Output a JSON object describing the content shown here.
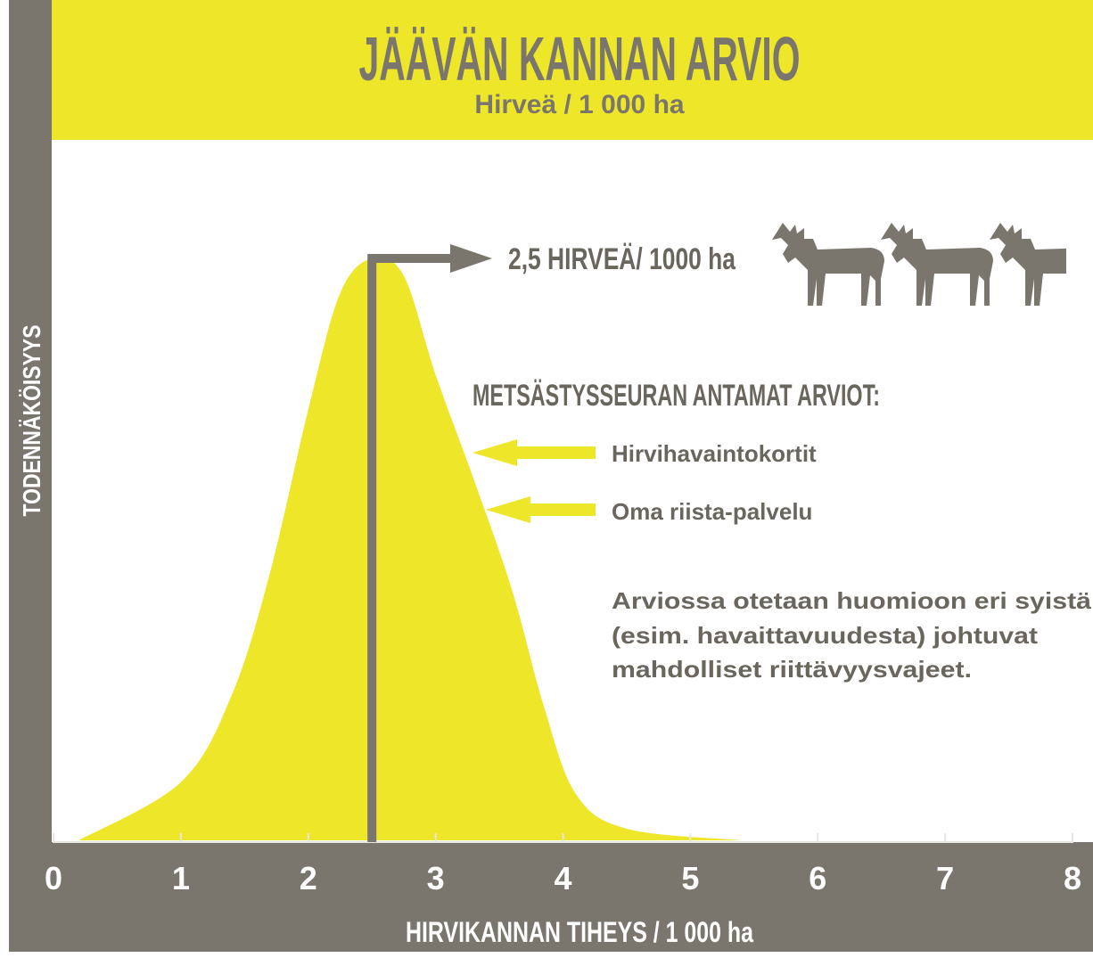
{
  "chart_data": {
    "type": "area",
    "title": "JÄÄVÄN KANNAN ARVIO",
    "subtitle": "Hirveä / 1 000 ha",
    "xlabel": "HIRVIKANNAN TIHEYS / 1 000 ha",
    "ylabel": "TODENNÄKÖISYYS",
    "x": [
      0.2,
      1,
      1.4,
      1.7,
      2,
      2.25,
      2.5,
      2.75,
      3,
      3.3,
      3.6,
      3.85,
      4.1,
      4.5,
      5.4
    ],
    "values": [
      0,
      0.1,
      0.25,
      0.46,
      0.74,
      0.94,
      1,
      0.97,
      0.8,
      0.62,
      0.43,
      0.23,
      0.08,
      0.02,
      0
    ],
    "color": "#ede629",
    "xlim": [
      0,
      8
    ],
    "xticks": [
      0,
      1,
      2,
      3,
      4,
      5,
      6,
      7,
      8
    ],
    "ylim": [
      0,
      1
    ],
    "marker": {
      "x": 2.5,
      "label": "2,5 HIRVEÄ/ 1000 ha"
    },
    "annotations": {
      "heading": "METSÄSTYSSEURAN ANTAMAT ARVIOT:",
      "items": [
        "Hirvihavaintokortit",
        "Oma riista-palvelu"
      ],
      "note": [
        "Arviossa otetaan huomioon eri syistä",
        "(esim. havaittavuudesta) johtuvat",
        "mahdolliset riittävyysvajeet."
      ]
    }
  }
}
